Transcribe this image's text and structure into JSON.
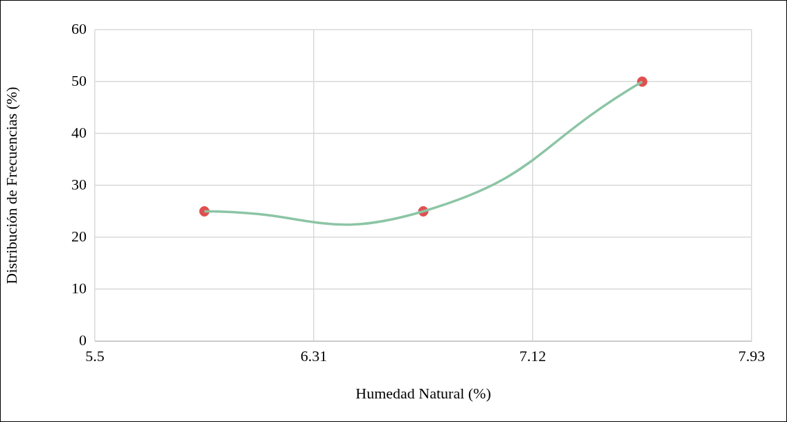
{
  "chart_data": {
    "type": "line",
    "xlabel": "Humedad Natural (%)",
    "ylabel": "Distribución de Frecuencias (%)",
    "xlim": [
      5.5,
      7.93
    ],
    "xticks": [
      5.5,
      6.31,
      7.12,
      7.93
    ],
    "ylim": [
      0,
      60
    ],
    "yticks": [
      0,
      10,
      20,
      30,
      40,
      50,
      60
    ],
    "grid": true,
    "legend": false,
    "series": [
      {
        "color": "#8cc5a5",
        "marker": "none",
        "x": [
          5.905,
          6.715,
          7.525
        ],
        "values": [
          25,
          25,
          50
        ]
      },
      {
        "type": "scatter",
        "color": "#e0504f",
        "marker": "circle",
        "x": [
          5.905,
          6.715,
          7.525
        ],
        "values": [
          25,
          25,
          50
        ]
      }
    ]
  }
}
